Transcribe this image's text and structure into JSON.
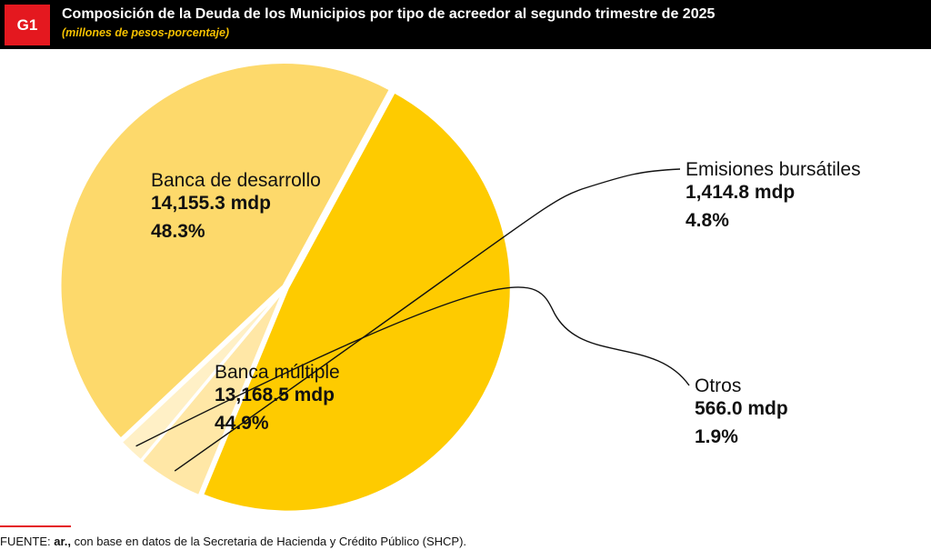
{
  "header": {
    "badge": "G1",
    "title": "Composición de la Deuda de los Municipios por tipo de acreedor al segundo trimestre de 2025",
    "subtitle": "(millones de pesos-porcentaje)"
  },
  "chart_data": {
    "type": "pie",
    "title": "Composición de la Deuda de los Municipios por tipo de acreedor al segundo trimestre de 2025",
    "subtitle": "(millones de pesos-porcentaje)",
    "slices": [
      {
        "name": "Banca de desarrollo",
        "value": 14155.3,
        "value_label": "14,155.3 mdp",
        "percent": 48.3,
        "percent_label": "48.3%",
        "color": "#fecb00"
      },
      {
        "name": "Emisiones bursátiles",
        "value": 1414.8,
        "value_label": "1,414.8 mdp",
        "percent": 4.8,
        "percent_label": "4.8%",
        "color": "#ffe7a6"
      },
      {
        "name": "Otros",
        "value": 566.0,
        "value_label": "566.0 mdp",
        "percent": 1.9,
        "percent_label": "1.9%",
        "color": "#fff0c6"
      },
      {
        "name": "Banca múltiple",
        "value": 13168.5,
        "value_label": "13,168.5 mdp",
        "percent": 44.9,
        "percent_label": "44.9%",
        "color": "#fdd96b"
      }
    ]
  },
  "footer": {
    "prefix": "FUENTE: ",
    "brand": "ar.,",
    "text": " con base en datos de la Secretaria de Hacienda y Crédito Público (SHCP)."
  }
}
